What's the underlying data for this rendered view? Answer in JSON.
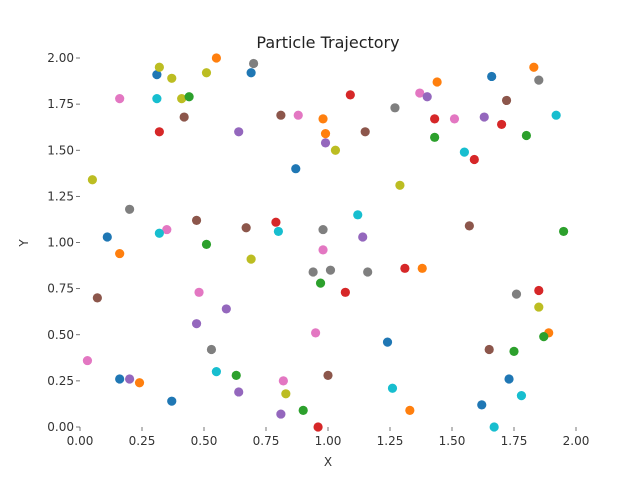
{
  "chart_data": {
    "type": "scatter",
    "title": "Particle Trajectory",
    "xlabel": "X",
    "ylabel": "Y",
    "xlim": [
      0,
      2
    ],
    "ylim": [
      0,
      2
    ],
    "grid": false,
    "xticks": [
      "0.00",
      "0.25",
      "0.50",
      "0.75",
      "1.00",
      "1.25",
      "1.50",
      "1.75",
      "2.00"
    ],
    "yticks": [
      "0.00",
      "0.25",
      "0.50",
      "0.75",
      "1.00",
      "1.25",
      "1.50",
      "1.75",
      "2.00"
    ],
    "colors": {
      "blue": "#1f77b4",
      "orange": "#ff7f0e",
      "green": "#2ca02c",
      "red": "#d62728",
      "purple": "#9467bd",
      "brown": "#8c564b",
      "pink": "#e377c2",
      "gray": "#7f7f7f",
      "olive": "#bcbd22",
      "cyan": "#17becf"
    },
    "points": [
      {
        "x": 0.31,
        "y": 1.91,
        "c": "blue"
      },
      {
        "x": 0.32,
        "y": 1.95,
        "c": "olive"
      },
      {
        "x": 0.37,
        "y": 1.89,
        "c": "olive"
      },
      {
        "x": 0.55,
        "y": 2.0,
        "c": "orange"
      },
      {
        "x": 0.51,
        "y": 1.92,
        "c": "olive"
      },
      {
        "x": 0.7,
        "y": 1.97,
        "c": "gray"
      },
      {
        "x": 0.69,
        "y": 1.92,
        "c": "blue"
      },
      {
        "x": 1.66,
        "y": 1.9,
        "c": "blue"
      },
      {
        "x": 1.83,
        "y": 1.95,
        "c": "orange"
      },
      {
        "x": 1.85,
        "y": 1.88,
        "c": "gray"
      },
      {
        "x": 1.44,
        "y": 1.87,
        "c": "orange"
      },
      {
        "x": 0.16,
        "y": 1.78,
        "c": "pink"
      },
      {
        "x": 0.31,
        "y": 1.78,
        "c": "cyan"
      },
      {
        "x": 0.41,
        "y": 1.78,
        "c": "olive"
      },
      {
        "x": 0.44,
        "y": 1.79,
        "c": "green"
      },
      {
        "x": 1.09,
        "y": 1.8,
        "c": "red"
      },
      {
        "x": 1.37,
        "y": 1.81,
        "c": "pink"
      },
      {
        "x": 1.4,
        "y": 1.79,
        "c": "purple"
      },
      {
        "x": 1.72,
        "y": 1.77,
        "c": "brown"
      },
      {
        "x": 1.27,
        "y": 1.73,
        "c": "gray"
      },
      {
        "x": 1.92,
        "y": 1.69,
        "c": "cyan"
      },
      {
        "x": 0.42,
        "y": 1.68,
        "c": "brown"
      },
      {
        "x": 0.81,
        "y": 1.69,
        "c": "brown"
      },
      {
        "x": 0.88,
        "y": 1.69,
        "c": "pink"
      },
      {
        "x": 0.98,
        "y": 1.67,
        "c": "orange"
      },
      {
        "x": 1.43,
        "y": 1.67,
        "c": "red"
      },
      {
        "x": 1.51,
        "y": 1.67,
        "c": "pink"
      },
      {
        "x": 1.63,
        "y": 1.68,
        "c": "purple"
      },
      {
        "x": 1.7,
        "y": 1.64,
        "c": "red"
      },
      {
        "x": 0.32,
        "y": 1.6,
        "c": "red"
      },
      {
        "x": 0.64,
        "y": 1.6,
        "c": "purple"
      },
      {
        "x": 0.99,
        "y": 1.59,
        "c": "orange"
      },
      {
        "x": 1.15,
        "y": 1.6,
        "c": "brown"
      },
      {
        "x": 1.43,
        "y": 1.57,
        "c": "green"
      },
      {
        "x": 1.8,
        "y": 1.58,
        "c": "green"
      },
      {
        "x": 0.99,
        "y": 1.54,
        "c": "purple"
      },
      {
        "x": 1.03,
        "y": 1.5,
        "c": "olive"
      },
      {
        "x": 1.55,
        "y": 1.49,
        "c": "cyan"
      },
      {
        "x": 1.59,
        "y": 1.45,
        "c": "red"
      },
      {
        "x": 0.87,
        "y": 1.4,
        "c": "blue"
      },
      {
        "x": 0.05,
        "y": 1.34,
        "c": "olive"
      },
      {
        "x": 1.29,
        "y": 1.31,
        "c": "olive"
      },
      {
        "x": 0.2,
        "y": 1.18,
        "c": "gray"
      },
      {
        "x": 1.12,
        "y": 1.15,
        "c": "cyan"
      },
      {
        "x": 0.47,
        "y": 1.12,
        "c": "brown"
      },
      {
        "x": 0.79,
        "y": 1.11,
        "c": "red"
      },
      {
        "x": 0.67,
        "y": 1.08,
        "c": "brown"
      },
      {
        "x": 0.98,
        "y": 1.07,
        "c": "gray"
      },
      {
        "x": 1.57,
        "y": 1.09,
        "c": "brown"
      },
      {
        "x": 1.95,
        "y": 1.06,
        "c": "green"
      },
      {
        "x": 0.35,
        "y": 1.07,
        "c": "pink"
      },
      {
        "x": 0.32,
        "y": 1.05,
        "c": "cyan"
      },
      {
        "x": 0.8,
        "y": 1.06,
        "c": "cyan"
      },
      {
        "x": 0.11,
        "y": 1.03,
        "c": "blue"
      },
      {
        "x": 1.14,
        "y": 1.03,
        "c": "purple"
      },
      {
        "x": 0.51,
        "y": 0.99,
        "c": "green"
      },
      {
        "x": 0.98,
        "y": 0.96,
        "c": "pink"
      },
      {
        "x": 0.16,
        "y": 0.94,
        "c": "orange"
      },
      {
        "x": 0.69,
        "y": 0.91,
        "c": "olive"
      },
      {
        "x": 1.31,
        "y": 0.86,
        "c": "red"
      },
      {
        "x": 1.38,
        "y": 0.86,
        "c": "orange"
      },
      {
        "x": 0.94,
        "y": 0.84,
        "c": "gray"
      },
      {
        "x": 1.01,
        "y": 0.85,
        "c": "gray"
      },
      {
        "x": 1.16,
        "y": 0.84,
        "c": "gray"
      },
      {
        "x": 0.97,
        "y": 0.78,
        "c": "green"
      },
      {
        "x": 1.85,
        "y": 0.74,
        "c": "red"
      },
      {
        "x": 0.07,
        "y": 0.7,
        "c": "brown"
      },
      {
        "x": 0.48,
        "y": 0.73,
        "c": "pink"
      },
      {
        "x": 1.07,
        "y": 0.73,
        "c": "red"
      },
      {
        "x": 1.76,
        "y": 0.72,
        "c": "gray"
      },
      {
        "x": 1.85,
        "y": 0.65,
        "c": "olive"
      },
      {
        "x": 0.59,
        "y": 0.64,
        "c": "purple"
      },
      {
        "x": 0.47,
        "y": 0.56,
        "c": "purple"
      },
      {
        "x": 0.95,
        "y": 0.51,
        "c": "pink"
      },
      {
        "x": 1.89,
        "y": 0.51,
        "c": "orange"
      },
      {
        "x": 1.87,
        "y": 0.49,
        "c": "green"
      },
      {
        "x": 1.24,
        "y": 0.46,
        "c": "blue"
      },
      {
        "x": 0.53,
        "y": 0.42,
        "c": "gray"
      },
      {
        "x": 1.65,
        "y": 0.42,
        "c": "brown"
      },
      {
        "x": 1.75,
        "y": 0.41,
        "c": "green"
      },
      {
        "x": 0.03,
        "y": 0.36,
        "c": "pink"
      },
      {
        "x": 0.55,
        "y": 0.3,
        "c": "cyan"
      },
      {
        "x": 0.63,
        "y": 0.28,
        "c": "green"
      },
      {
        "x": 1.0,
        "y": 0.28,
        "c": "brown"
      },
      {
        "x": 1.73,
        "y": 0.26,
        "c": "blue"
      },
      {
        "x": 0.16,
        "y": 0.26,
        "c": "blue"
      },
      {
        "x": 0.2,
        "y": 0.26,
        "c": "purple"
      },
      {
        "x": 0.24,
        "y": 0.24,
        "c": "orange"
      },
      {
        "x": 0.82,
        "y": 0.25,
        "c": "pink"
      },
      {
        "x": 1.26,
        "y": 0.21,
        "c": "cyan"
      },
      {
        "x": 0.64,
        "y": 0.19,
        "c": "purple"
      },
      {
        "x": 0.83,
        "y": 0.18,
        "c": "olive"
      },
      {
        "x": 1.78,
        "y": 0.17,
        "c": "cyan"
      },
      {
        "x": 0.37,
        "y": 0.14,
        "c": "blue"
      },
      {
        "x": 1.62,
        "y": 0.12,
        "c": "blue"
      },
      {
        "x": 0.9,
        "y": 0.09,
        "c": "green"
      },
      {
        "x": 1.33,
        "y": 0.09,
        "c": "orange"
      },
      {
        "x": 0.81,
        "y": 0.07,
        "c": "purple"
      },
      {
        "x": 0.96,
        "y": 0.0,
        "c": "red"
      },
      {
        "x": 1.67,
        "y": 0.0,
        "c": "cyan"
      }
    ]
  }
}
